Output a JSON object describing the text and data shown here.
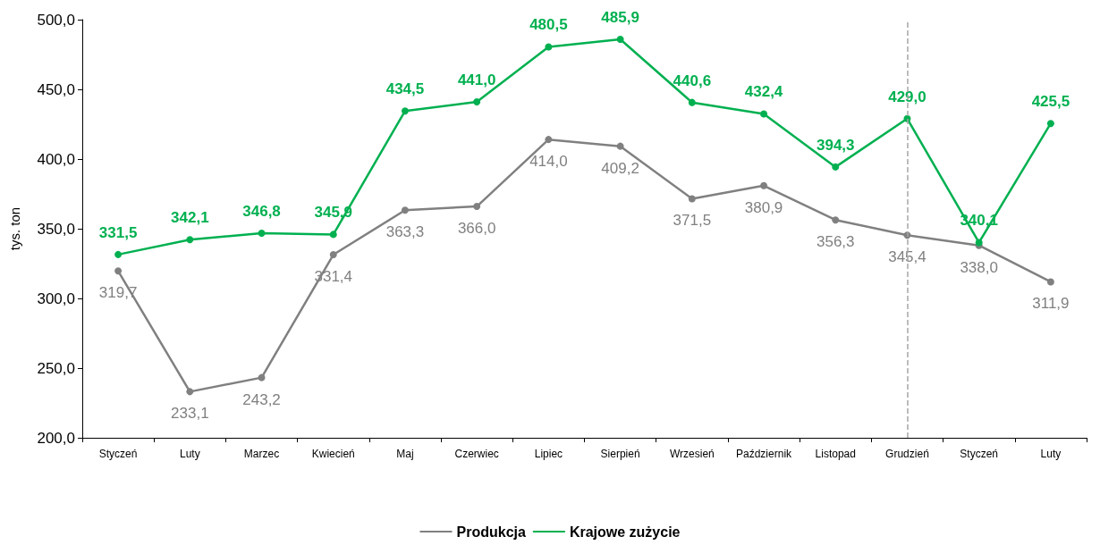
{
  "chart_data": {
    "type": "line",
    "ylabel": "tys. ton",
    "categories": [
      "Styczeń",
      "Luty",
      "Marzec",
      "Kwiecień",
      "Maj",
      "Czerwiec",
      "Lipiec",
      "Sierpień",
      "Wrzesień",
      "Październik",
      "Listopad",
      "Grudzień",
      "Styczeń",
      "Luty"
    ],
    "series": [
      {
        "name": "Produkcja",
        "color": "#808080",
        "values": [
          319.7,
          233.1,
          243.2,
          331.4,
          363.3,
          366.0,
          414.0,
          409.2,
          371.5,
          380.9,
          356.3,
          345.4,
          338.0,
          311.9
        ],
        "value_labels": [
          "319,7",
          "233,1",
          "243,2",
          "331,4",
          "363,3",
          "366,0",
          "414,0",
          "409,2",
          "371,5",
          "380,9",
          "356,3",
          "345,4",
          "338,0",
          "311,9"
        ]
      },
      {
        "name": "Krajowe zużycie",
        "color": "#00b050",
        "values": [
          331.5,
          342.1,
          346.8,
          345.9,
          434.5,
          441.0,
          480.5,
          485.9,
          440.6,
          432.4,
          394.3,
          429.0,
          340.1,
          425.5
        ],
        "value_labels": [
          "331,5",
          "342,1",
          "346,8",
          "345,9",
          "434,5",
          "441,0",
          "480,5",
          "485,9",
          "440,6",
          "432,4",
          "394,3",
          "429,0",
          "340,1",
          "425,5"
        ]
      }
    ],
    "ylim": [
      200,
      500
    ],
    "yticks": [
      {
        "value": 200,
        "label": "200,0"
      },
      {
        "value": 250,
        "label": "250,0"
      },
      {
        "value": 300,
        "label": "300,0"
      },
      {
        "value": 350,
        "label": "350,0"
      },
      {
        "value": 400,
        "label": "400,0"
      },
      {
        "value": 450,
        "label": "450,0"
      },
      {
        "value": 500,
        "label": "500,0"
      }
    ],
    "ref_lines": [
      {
        "axis": "x",
        "value": "Grudzień",
        "color": "#a6a6a6",
        "line_style": "dashed"
      }
    ],
    "grid": false,
    "legend": "bottom",
    "marker": "circle",
    "line_style": "solid"
  }
}
